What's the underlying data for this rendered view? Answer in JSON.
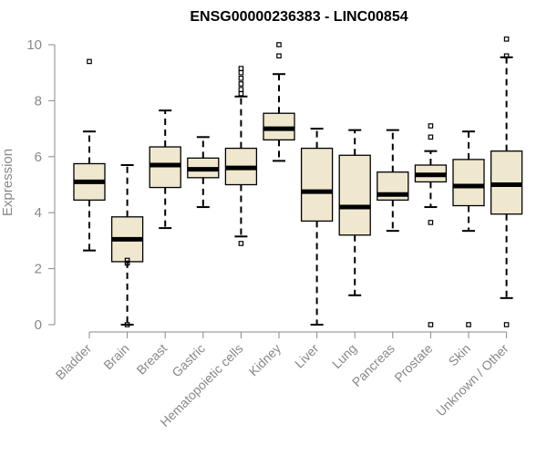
{
  "chart_data": {
    "type": "box",
    "title": "ENSG00000236383 - LINC00854",
    "xlabel": "",
    "ylabel": "Expression",
    "ylim": [
      0,
      10
    ],
    "yticks": [
      "0",
      "2",
      "4",
      "6",
      "8",
      "10"
    ],
    "grid": false,
    "colors": {
      "box_fill": "#efe8cf",
      "stroke": "#000000",
      "axis": "#888888",
      "label": "#888888"
    },
    "categories": [
      "Bladder",
      "Brain",
      "Breast",
      "Gastric",
      "Hematopoietic cells",
      "Kidney",
      "Liver",
      "Lung",
      "Pancreas",
      "Prostate",
      "Skin",
      "Unknown / Other"
    ],
    "boxes": [
      {
        "category": "Bladder",
        "whisker_low": 2.65,
        "q1": 4.45,
        "median": 5.1,
        "q3": 5.75,
        "whisker_high": 6.9,
        "outliers": [
          9.4
        ]
      },
      {
        "category": "Brain",
        "whisker_low": 0.0,
        "q1": 2.25,
        "median": 3.05,
        "q3": 3.85,
        "whisker_high": 5.7,
        "outliers": [
          2.3,
          2.2,
          0.0
        ]
      },
      {
        "category": "Breast",
        "whisker_low": 3.45,
        "q1": 4.9,
        "median": 5.7,
        "q3": 6.35,
        "whisker_high": 7.65,
        "outliers": []
      },
      {
        "category": "Gastric",
        "whisker_low": 4.2,
        "q1": 5.25,
        "median": 5.55,
        "q3": 5.95,
        "whisker_high": 6.7,
        "outliers": []
      },
      {
        "category": "Hematopoietic cells",
        "whisker_low": 3.15,
        "q1": 5.0,
        "median": 5.6,
        "q3": 6.3,
        "whisker_high": 8.15,
        "outliers": [
          2.9,
          8.25,
          8.4,
          8.6,
          8.8,
          9.0,
          9.15
        ]
      },
      {
        "category": "Kidney",
        "whisker_low": 5.85,
        "q1": 6.6,
        "median": 7.0,
        "q3": 7.55,
        "whisker_high": 8.95,
        "outliers": [
          9.6,
          10.0
        ]
      },
      {
        "category": "Liver",
        "whisker_low": 0.0,
        "q1": 3.7,
        "median": 4.75,
        "q3": 6.3,
        "whisker_high": 7.0,
        "outliers": []
      },
      {
        "category": "Lung",
        "whisker_low": 1.05,
        "q1": 3.2,
        "median": 4.2,
        "q3": 6.05,
        "whisker_high": 6.95,
        "outliers": []
      },
      {
        "category": "Pancreas",
        "whisker_low": 3.35,
        "q1": 4.45,
        "median": 4.65,
        "q3": 5.45,
        "whisker_high": 6.95,
        "outliers": []
      },
      {
        "category": "Prostate",
        "whisker_low": 4.2,
        "q1": 5.1,
        "median": 5.35,
        "q3": 5.7,
        "whisker_high": 6.2,
        "outliers": [
          3.65,
          6.7,
          7.1,
          0.0
        ]
      },
      {
        "category": "Skin",
        "whisker_low": 3.35,
        "q1": 4.25,
        "median": 4.95,
        "q3": 5.9,
        "whisker_high": 6.9,
        "outliers": [
          0.0
        ]
      },
      {
        "category": "Unknown / Other",
        "whisker_low": 0.95,
        "q1": 3.95,
        "median": 5.0,
        "q3": 6.2,
        "whisker_high": 9.55,
        "outliers": [
          9.6,
          10.2,
          0.0
        ]
      }
    ]
  }
}
